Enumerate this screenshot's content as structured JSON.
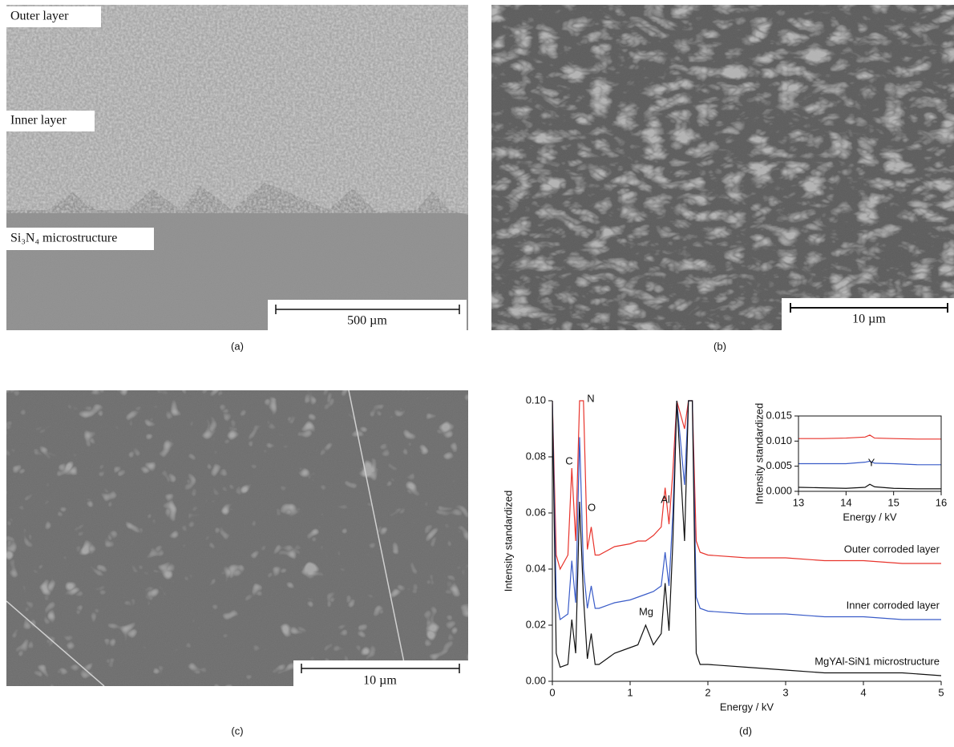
{
  "panels": [
    {
      "caption": "(a)",
      "labels": [
        "Outer layer",
        "Inner layer",
        "Si₃N₄ microstructure"
      ],
      "scale_bar": "500 µm"
    },
    {
      "caption": "(b)",
      "scale_bar": "10 µm"
    },
    {
      "caption": "(c)",
      "scale_bar": "10 µm"
    },
    {
      "caption": "(d)"
    }
  ],
  "chart_data": [
    {
      "type": "line",
      "xlabel": "Energy / kV",
      "ylabel": "Intensity standardized",
      "x": [
        0,
        0.05,
        0.1,
        0.2,
        0.25,
        0.3,
        0.35,
        0.4,
        0.45,
        0.5,
        0.55,
        0.6,
        0.8,
        1.0,
        1.1,
        1.2,
        1.3,
        1.4,
        1.45,
        1.5,
        1.55,
        1.6,
        1.7,
        1.75,
        1.8,
        1.85,
        1.9,
        2.0,
        2.5,
        3.0,
        3.5,
        4.0,
        4.5,
        5.0
      ],
      "series": [
        {
          "name": "Outer corroded layer",
          "color": "#e8342c",
          "values": [
            0.1,
            0.045,
            0.04,
            0.045,
            0.076,
            0.05,
            0.1,
            0.1,
            0.047,
            0.055,
            0.045,
            0.045,
            0.048,
            0.049,
            0.05,
            0.05,
            0.052,
            0.055,
            0.069,
            0.056,
            0.075,
            0.1,
            0.09,
            0.1,
            0.1,
            0.05,
            0.046,
            0.045,
            0.044,
            0.044,
            0.043,
            0.043,
            0.042,
            0.042
          ]
        },
        {
          "name": "Inner corroded layer",
          "color": "#3a5cc8",
          "values": [
            0.1,
            0.03,
            0.022,
            0.024,
            0.043,
            0.028,
            0.087,
            0.04,
            0.026,
            0.034,
            0.026,
            0.026,
            0.028,
            0.029,
            0.03,
            0.031,
            0.032,
            0.034,
            0.046,
            0.034,
            0.06,
            0.1,
            0.07,
            0.1,
            0.1,
            0.03,
            0.026,
            0.025,
            0.024,
            0.024,
            0.023,
            0.023,
            0.022,
            0.022
          ]
        },
        {
          "name": "MgYAl-SiN1 microstructure",
          "color": "#111111",
          "values": [
            0.1,
            0.01,
            0.005,
            0.006,
            0.022,
            0.01,
            0.064,
            0.03,
            0.008,
            0.017,
            0.006,
            0.006,
            0.01,
            0.012,
            0.013,
            0.02,
            0.013,
            0.017,
            0.035,
            0.018,
            0.05,
            0.1,
            0.05,
            0.1,
            0.1,
            0.01,
            0.006,
            0.006,
            0.005,
            0.004,
            0.003,
            0.003,
            0.003,
            0.002
          ]
        }
      ],
      "annotations": [
        "C",
        "N",
        "O",
        "Al",
        "Mg"
      ],
      "xlim": [
        0,
        5
      ],
      "xticks": [
        0,
        1,
        2,
        3,
        4,
        5
      ],
      "ylim": [
        0,
        0.1
      ],
      "yticks": [
        {
          "value": 0,
          "label": "0.00"
        },
        0.02,
        0.04,
        0.06,
        0.08,
        {
          "value": 0.1,
          "label": "0.10"
        }
      ]
    },
    {
      "type": "line",
      "xlabel": "Energy / kV",
      "ylabel": "Intensity standardized",
      "x": [
        13,
        13.5,
        14,
        14.4,
        14.5,
        14.6,
        15,
        15.5,
        16
      ],
      "series": [
        {
          "color": "#e8342c",
          "values": [
            0.0105,
            0.0105,
            0.0106,
            0.0108,
            0.0112,
            0.0106,
            0.0105,
            0.0104,
            0.0104
          ]
        },
        {
          "color": "#3a5cc8",
          "values": [
            0.0055,
            0.0055,
            0.0055,
            0.0058,
            0.006,
            0.0056,
            0.0055,
            0.0053,
            0.0053
          ]
        },
        {
          "color": "#111111",
          "values": [
            0.0008,
            0.0007,
            0.0006,
            0.0008,
            0.0014,
            0.0009,
            0.0006,
            0.0005,
            0.0005
          ]
        }
      ],
      "annotations": [
        "Y"
      ],
      "xlim": [
        13,
        16
      ],
      "xticks": [
        13,
        14,
        15,
        16
      ],
      "ylim": [
        0,
        0.015
      ],
      "yticks": [
        {
          "value": 0,
          "label": "0.000"
        },
        {
          "value": 0.005,
          "label": "0.005"
        },
        {
          "value": 0.01,
          "label": "0.010"
        },
        {
          "value": 0.015,
          "label": "0.015"
        }
      ]
    }
  ]
}
